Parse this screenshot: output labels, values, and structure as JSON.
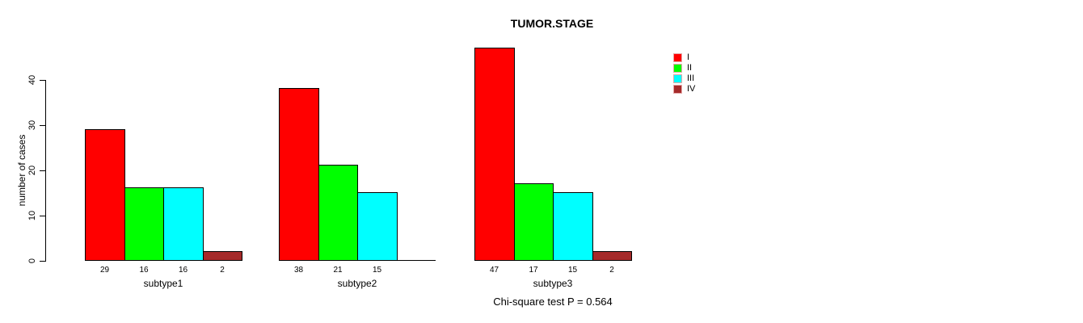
{
  "chart_data": {
    "type": "bar",
    "title": "TUMOR.STAGE",
    "ylabel": "number of cases",
    "xlabel": "",
    "ylim": [
      0,
      40
    ],
    "yticks": [
      0,
      10,
      20,
      30,
      40
    ],
    "grid": false,
    "legend_position": "top-right",
    "categories": [
      "subtype1",
      "subtype2",
      "subtype3"
    ],
    "series": [
      {
        "name": "I",
        "color": "#ff0000",
        "values": [
          29,
          38,
          47
        ]
      },
      {
        "name": "II",
        "color": "#00ff00",
        "values": [
          16,
          21,
          17
        ]
      },
      {
        "name": "III",
        "color": "#00ffff",
        "values": [
          16,
          15,
          15
        ]
      },
      {
        "name": "IV",
        "color": "#a52a2a",
        "values": [
          2,
          0,
          2
        ]
      }
    ],
    "bar_value_labels": [
      [
        "29",
        "16",
        "16",
        "2"
      ],
      [
        "38",
        "21",
        "15",
        ""
      ],
      [
        "47",
        "17",
        "15",
        "2"
      ]
    ],
    "annotation": "Chi-square test P = 0.564"
  }
}
